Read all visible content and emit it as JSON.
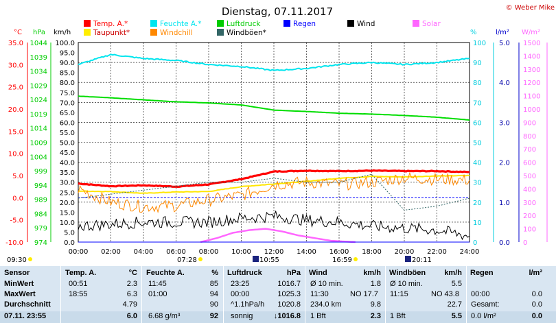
{
  "title": "Dienstag, 07.11.2017",
  "copyright": "© Weber Mike",
  "legend": [
    {
      "label": "Temp. A.*",
      "color": "#ff0000"
    },
    {
      "label": "Feuchte A.*",
      "color": "#00e5ee"
    },
    {
      "label": "Luftdruck",
      "color": "#00cc00"
    },
    {
      "label": "Regen",
      "color": "#0000ff"
    },
    {
      "label": "Wind",
      "color": "#000000"
    },
    {
      "label": "Solar",
      "color": "#ff66ff"
    },
    {
      "label": "Taupunkt*",
      "color": "#ffee00"
    },
    {
      "label": "Windchill",
      "color": "#ff8800"
    },
    {
      "label": "Windböen*",
      "color": "#336666"
    }
  ],
  "axes": {
    "temp_unit": "°C",
    "pressure_unit": "hPa",
    "wind_unit": "km/h",
    "humidity_unit": "%",
    "rain_unit": "l/m²",
    "solar_unit": "W/m²",
    "temp_ticks": [
      "35.0",
      "30.0",
      "25.0",
      "20.0",
      "15.0",
      "10.0",
      "5.0",
      "0.0",
      "-5.0",
      "-10.0"
    ],
    "pressure_ticks": [
      "1044",
      "1039",
      "1034",
      "1029",
      "1024",
      "1019",
      "1014",
      "1009",
      "1004",
      "999",
      "994",
      "989",
      "984",
      "979",
      "974"
    ],
    "wind_ticks": [
      "100.0",
      "95.0",
      "90.0",
      "85.0",
      "80.0",
      "75.0",
      "70.0",
      "65.0",
      "60.0",
      "55.0",
      "50.0",
      "45.0",
      "40.0",
      "35.0",
      "30.0",
      "25.0",
      "20.0",
      "15.0",
      "10.0",
      "5.0",
      "0.0"
    ],
    "humidity_ticks": [
      "100",
      "90",
      "80",
      "70",
      "60",
      "50",
      "40",
      "30",
      "20",
      "10",
      "0"
    ],
    "rain_ticks": [
      "5.0",
      "4.0",
      "3.0",
      "2.0",
      "1.0",
      "0.0"
    ],
    "solar_ticks": [
      "1500",
      "1400",
      "1300",
      "1200",
      "1100",
      "1000",
      "900",
      "800",
      "700",
      "600",
      "500",
      "400",
      "300",
      "200",
      "100",
      "0"
    ],
    "time_ticks": [
      "00:00",
      "02:00",
      "04:00",
      "06:00",
      "08:00",
      "10:00",
      "12:00",
      "14:00",
      "16:00",
      "18:00",
      "20:00",
      "22:00",
      "24:00"
    ]
  },
  "sun_events": {
    "left_time": "09:30",
    "sunrise": "07:28",
    "noon": "10:55",
    "sunset": "16:59",
    "moon": "20:11"
  },
  "chart_data": {
    "type": "line",
    "x_label": "",
    "x_range": [
      "00:00",
      "24:00"
    ],
    "series": [
      {
        "name": "Temp. A.*",
        "axis": "°C",
        "x": [
          "00:00",
          "02:00",
          "04:00",
          "06:00",
          "08:00",
          "10:00",
          "12:00",
          "14:00",
          "16:00",
          "18:00",
          "20:00",
          "22:00",
          "24:00"
        ],
        "values": [
          3.2,
          2.6,
          2.8,
          2.5,
          3.0,
          4.2,
          5.9,
          6.1,
          6.0,
          6.1,
          6.0,
          6.0,
          5.8
        ]
      },
      {
        "name": "Taupunkt*",
        "axis": "°C",
        "x": [
          "00:00",
          "02:00",
          "04:00",
          "06:00",
          "08:00",
          "10:00",
          "12:00",
          "14:00",
          "16:00",
          "18:00",
          "20:00",
          "22:00",
          "24:00"
        ],
        "values": [
          1.5,
          1.4,
          1.0,
          1.3,
          1.4,
          2.5,
          3.1,
          3.7,
          4.4,
          4.8,
          4.7,
          4.9,
          5.0
        ]
      },
      {
        "name": "Windchill",
        "axis": "°C",
        "x": [
          "00:00",
          "02:00",
          "04:00",
          "06:00",
          "08:00",
          "10:00",
          "12:00",
          "14:00",
          "16:00",
          "18:00",
          "20:00",
          "22:00",
          "24:00"
        ],
        "values": [
          2.0,
          -1.0,
          -2.0,
          -1.8,
          -0.5,
          0.5,
          3.0,
          3.5,
          3.0,
          3.5,
          4.5,
          4.2,
          4.0
        ]
      },
      {
        "name": "Feuchte A.*",
        "axis": "%",
        "x": [
          "00:00",
          "02:00",
          "04:00",
          "06:00",
          "08:00",
          "10:00",
          "12:00",
          "14:00",
          "16:00",
          "18:00",
          "20:00",
          "22:00",
          "24:00"
        ],
        "values": [
          89,
          94,
          92,
          91,
          89,
          88,
          86,
          87,
          89,
          90,
          89,
          90,
          92
        ]
      },
      {
        "name": "Luftdruck",
        "axis": "hPa",
        "x": [
          "00:00",
          "02:00",
          "04:00",
          "06:00",
          "08:00",
          "10:00",
          "12:00",
          "14:00",
          "16:00",
          "18:00",
          "20:00",
          "22:00",
          "24:00"
        ],
        "values": [
          1025.2,
          1024.6,
          1023.9,
          1023.2,
          1022.8,
          1022.1,
          1020.3,
          1019.8,
          1019.2,
          1018.9,
          1018.4,
          1017.8,
          1016.8
        ]
      },
      {
        "name": "Wind",
        "axis": "km/h",
        "x": [
          "00:00",
          "02:00",
          "04:00",
          "06:00",
          "08:00",
          "10:00",
          "12:00",
          "14:00",
          "16:00",
          "18:00",
          "20:00",
          "22:00",
          "24:00"
        ],
        "values": [
          8,
          9,
          10,
          10,
          10,
          12,
          13,
          11,
          10,
          8,
          7,
          6,
          3
        ]
      },
      {
        "name": "Windböen*",
        "axis": "km/h",
        "x": [
          "00:00",
          "02:00",
          "04:00",
          "06:00",
          "08:00",
          "10:00",
          "12:00",
          "14:00",
          "16:00",
          "18:00",
          "20:00",
          "22:00",
          "24:00"
        ],
        "values": [
          22,
          24,
          26,
          28,
          30,
          30,
          32,
          30,
          30,
          34,
          16,
          18,
          22
        ]
      },
      {
        "name": "Solar",
        "axis": "W/m²",
        "x": [
          "07:30",
          "08:30",
          "09:30",
          "10:30",
          "11:30",
          "12:30",
          "13:30",
          "14:30",
          "15:30",
          "16:30",
          "17:00"
        ],
        "values": [
          0,
          30,
          70,
          90,
          100,
          80,
          50,
          30,
          10,
          3,
          0
        ]
      },
      {
        "name": "Regen",
        "axis": "l/m²",
        "x": [
          "00:00",
          "24:00"
        ],
        "values": [
          0,
          0
        ]
      }
    ],
    "reference_lines": [
      {
        "axis": "°C",
        "value": 0.0,
        "style": "dashed",
        "color": "#0000ff"
      }
    ],
    "grid": true
  },
  "table": {
    "headers": {
      "sensor": "Sensor",
      "temp": "Temp. A.",
      "temp_unit": "°C",
      "hum": "Feuchte A.",
      "hum_unit": "%",
      "press": "Luftdruck",
      "press_unit": "hPa",
      "wind": "Wind",
      "wind_unit": "km/h",
      "gust": "Windböen",
      "gust_unit": "km/h",
      "rain": "Regen",
      "rain_unit": "l/m²"
    },
    "rows": [
      {
        "label": "MinWert",
        "temp_t": "00:51",
        "temp_v": "2.3",
        "hum_t": "11:45",
        "hum_v": "85",
        "press_t": "23:25",
        "press_v": "1016.7",
        "wind_t": "Ø 10 min.",
        "wind_v": "1.8",
        "gust_t": "Ø 10 min.",
        "gust_v": "5.5",
        "rain_t": "",
        "rain_v": ""
      },
      {
        "label": "MaxWert",
        "temp_t": "18:55",
        "temp_v": "6.3",
        "hum_t": "01:00",
        "hum_v": "94",
        "press_t": "00:00",
        "press_v": "1025.3",
        "wind_t": "11:30",
        "wind_mid": "NO 17.7",
        "wind_v": "",
        "gust_t": "11:15",
        "gust_mid": "NO 43.8",
        "gust_v": "",
        "rain_t": "00:00",
        "rain_v": "0.0"
      },
      {
        "label": "Durchschnitt",
        "temp_t": "",
        "temp_v": "4.79",
        "hum_t": "",
        "hum_v": "90",
        "press_t": "^1.1hPa/h",
        "press_v": "1020.8",
        "wind_t": "234.0 km",
        "wind_v": "9.8",
        "gust_t": "",
        "gust_v": "22.7",
        "rain_t": "Gesamt:",
        "rain_v": "0.0"
      },
      {
        "label": "07.11. 23:55",
        "temp_t": "",
        "temp_v": "6.0",
        "hum_t": "6.68 g/m³",
        "hum_v": "92",
        "press_t": "sonnig",
        "press_v": "↓1016.8",
        "wind_t": "1 Bft",
        "wind_v": "2.3",
        "gust_t": "1 Bft",
        "gust_v": "5.5",
        "rain_t": "0.0 l/m²",
        "rain_v": "0.0"
      }
    ]
  }
}
